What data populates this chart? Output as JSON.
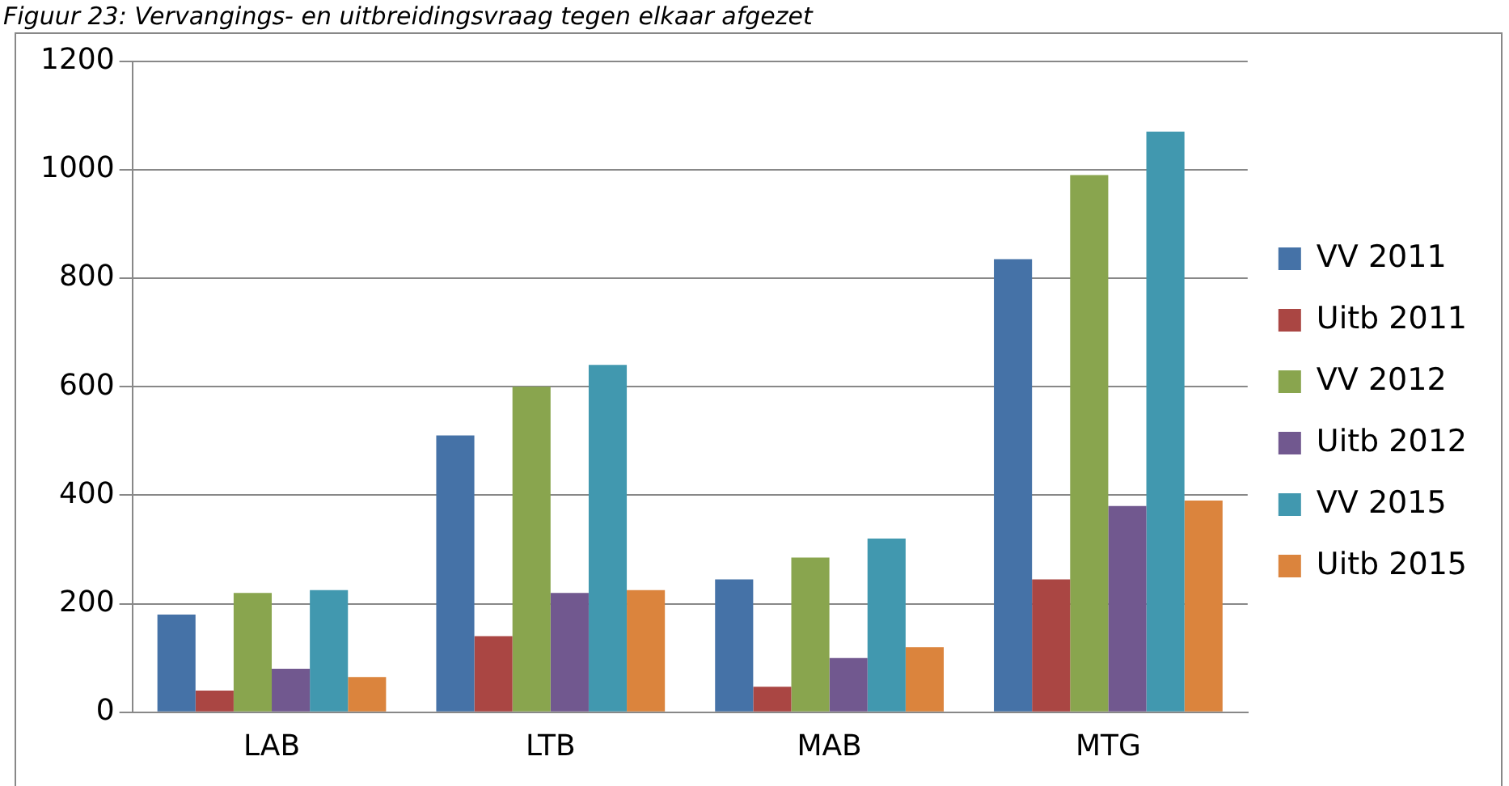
{
  "chart_data": {
    "type": "bar",
    "title": "Figuur 23: Vervangings- en uitbreidingsvraag tegen elkaar afgezet",
    "categories": [
      "LAB",
      "LTB",
      "MAB",
      "MTG"
    ],
    "series": [
      {
        "name": "VV 2011",
        "color": "#4572a7",
        "values": [
          180,
          510,
          245,
          835
        ]
      },
      {
        "name": "Uitb 2011",
        "color": "#aa4643",
        "values": [
          40,
          140,
          47,
          245
        ]
      },
      {
        "name": "VV 2012",
        "color": "#89a54e",
        "values": [
          220,
          600,
          285,
          990
        ]
      },
      {
        "name": "Uitb 2012",
        "color": "#71588f",
        "values": [
          80,
          220,
          100,
          380
        ]
      },
      {
        "name": "VV 2015",
        "color": "#4198af",
        "values": [
          225,
          640,
          320,
          1070
        ]
      },
      {
        "name": "Uitb 2015",
        "color": "#db843d",
        "values": [
          65,
          225,
          120,
          390
        ]
      }
    ],
    "ylim": [
      0,
      1200
    ],
    "yticks": [
      0,
      200,
      400,
      600,
      800,
      1000,
      1200
    ],
    "grid": "y",
    "legend": "right"
  }
}
